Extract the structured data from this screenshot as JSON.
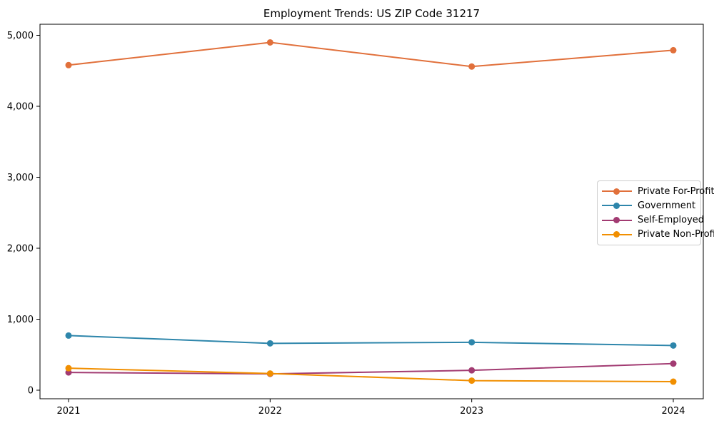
{
  "chart_data": {
    "type": "line",
    "title": "Employment Trends: US ZIP Code 31217",
    "xlabel": "",
    "ylabel": "",
    "x": [
      2021,
      2022,
      2023,
      2024
    ],
    "x_tick_labels": [
      "2021",
      "2022",
      "2023",
      "2024"
    ],
    "y_ticks": [
      0,
      1000,
      2000,
      3000,
      4000,
      5000
    ],
    "y_tick_labels": [
      "0",
      "1,000",
      "2,000",
      "3,000",
      "4,000",
      "5,000"
    ],
    "ylim": [
      -120,
      5160
    ],
    "grid": false,
    "legend_position": "center right",
    "marker": "circle",
    "series": [
      {
        "name": "Private For-Profit",
        "color": "#E1703B",
        "values": [
          4580,
          4900,
          4560,
          4790
        ]
      },
      {
        "name": "Government",
        "color": "#2E86AB",
        "values": [
          770,
          660,
          675,
          630
        ]
      },
      {
        "name": "Self-Employed",
        "color": "#A23B72",
        "values": [
          250,
          230,
          280,
          375
        ]
      },
      {
        "name": "Private Non-Profit",
        "color": "#F18F01",
        "values": [
          310,
          235,
          135,
          120
        ]
      }
    ]
  }
}
